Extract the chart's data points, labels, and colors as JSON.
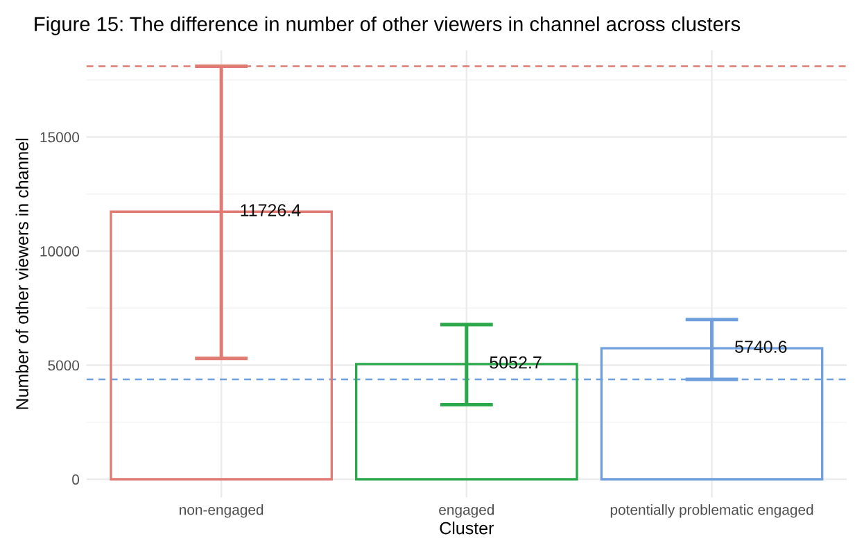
{
  "chart_data": {
    "type": "bar",
    "title": "Figure 15: The difference in number of other viewers in channel across clusters",
    "xlabel": "Cluster",
    "ylabel": "Number of other viewers in channel",
    "categories": [
      "non-engaged",
      "engaged",
      "potentially problematic engaged"
    ],
    "values": [
      11726.4,
      5052.7,
      5740.6
    ],
    "colors": [
      "#e07b73",
      "#2aa84a",
      "#6f9fdc"
    ],
    "errors": [
      [
        5300,
        18100
      ],
      [
        3270,
        6780
      ],
      [
        4380,
        7000
      ]
    ],
    "data_labels": true,
    "ylim": [
      -800,
      18800
    ],
    "yticks": [
      0,
      5000,
      10000,
      15000
    ],
    "ref_lines": [
      {
        "axis": "y",
        "value": 18100,
        "color": "#e07b73",
        "line_style": "dashed"
      },
      {
        "axis": "y",
        "value": 4380,
        "color": "#6f9fdc",
        "line_style": "dashed"
      }
    ],
    "grid": true,
    "legend": false
  }
}
